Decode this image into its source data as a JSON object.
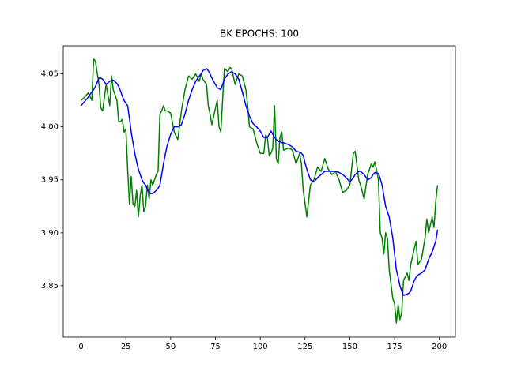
{
  "chart_data": {
    "type": "line",
    "title": "BK EPOCHS: 100",
    "x": [
      0,
      2,
      4,
      6,
      7,
      8,
      10,
      11,
      12,
      14,
      16,
      17,
      18,
      20,
      21,
      22,
      23,
      24,
      25,
      26,
      27,
      28,
      29,
      30,
      31,
      32,
      33,
      34,
      35,
      36,
      37,
      38,
      39,
      40,
      42,
      43,
      44,
      45,
      46,
      47,
      48,
      50,
      52,
      54,
      56,
      58,
      60,
      62,
      64,
      66,
      67,
      68,
      70,
      71,
      72,
      73,
      74,
      76,
      77,
      78,
      80,
      82,
      83,
      84,
      86,
      88,
      90,
      92,
      93,
      94,
      96,
      98,
      100,
      102,
      103,
      104,
      105,
      106,
      107,
      108,
      109,
      110,
      111,
      112,
      113,
      116,
      118,
      120,
      122,
      123,
      124,
      125,
      126,
      127,
      128,
      130,
      132,
      134,
      136,
      138,
      140,
      142,
      144,
      146,
      148,
      150,
      152,
      153,
      155,
      156,
      158,
      160,
      162,
      163,
      164,
      166,
      167,
      168,
      169,
      170,
      171,
      172,
      174,
      175,
      176,
      177,
      178,
      179,
      180,
      182,
      183,
      184,
      186,
      187,
      188,
      190,
      192,
      193,
      194,
      196,
      197,
      198,
      199
    ],
    "series": [
      {
        "color": "#008000",
        "values": [
          4.025,
          4.028,
          4.032,
          4.025,
          4.064,
          4.062,
          4.04,
          4.018,
          4.015,
          4.04,
          4.02,
          4.048,
          4.035,
          4.025,
          4.005,
          4.005,
          4.007,
          3.995,
          3.998,
          3.96,
          3.927,
          3.953,
          3.927,
          3.925,
          3.94,
          3.915,
          3.935,
          3.945,
          3.92,
          3.925,
          3.945,
          3.932,
          3.95,
          3.945,
          3.955,
          3.958,
          4.012,
          4.015,
          4.02,
          4.015,
          4.015,
          4.013,
          3.995,
          3.988,
          4.015,
          4.035,
          4.048,
          4.045,
          4.05,
          4.043,
          4.05,
          4.045,
          4.04,
          4.02,
          4.012,
          4.002,
          4.01,
          4.025,
          4.0,
          3.995,
          4.055,
          4.052,
          4.056,
          4.055,
          4.04,
          4.05,
          4.048,
          4.035,
          4.02,
          4.0,
          3.998,
          3.985,
          3.975,
          3.975,
          3.992,
          3.99,
          3.973,
          3.975,
          3.98,
          4.02,
          3.97,
          3.965,
          3.99,
          3.995,
          3.978,
          3.98,
          3.978,
          3.965,
          3.975,
          3.965,
          3.94,
          3.928,
          3.915,
          3.93,
          3.945,
          3.95,
          3.962,
          3.958,
          3.97,
          3.96,
          3.955,
          3.958,
          3.95,
          3.938,
          3.94,
          3.945,
          3.975,
          3.977,
          3.95,
          3.945,
          3.932,
          3.955,
          3.965,
          3.962,
          3.967,
          3.95,
          3.9,
          3.895,
          3.88,
          3.9,
          3.895,
          3.865,
          3.838,
          3.833,
          3.815,
          3.832,
          3.818,
          3.825,
          3.855,
          3.862,
          3.855,
          3.87,
          3.885,
          3.892,
          3.87,
          3.875,
          3.895,
          3.913,
          3.9,
          3.915,
          3.905,
          3.93,
          3.945
        ]
      },
      {
        "color": "#0000ff",
        "values": [
          4.02,
          4.024,
          4.028,
          4.033,
          4.035,
          4.038,
          4.046,
          4.046,
          4.045,
          4.04,
          4.043,
          4.044,
          4.044,
          4.041,
          4.038,
          4.034,
          4.029,
          4.025,
          4.022,
          4.02,
          4.008,
          3.995,
          3.985,
          3.975,
          3.967,
          3.96,
          3.955,
          3.95,
          3.947,
          3.945,
          3.941,
          3.938,
          3.937,
          3.937,
          3.94,
          3.942,
          3.945,
          3.955,
          3.965,
          3.974,
          3.982,
          3.993,
          4.0,
          4.0,
          4.002,
          4.012,
          4.025,
          4.035,
          4.043,
          4.048,
          4.05,
          4.053,
          4.055,
          4.053,
          4.05,
          4.046,
          4.043,
          4.037,
          4.036,
          4.035,
          4.045,
          4.05,
          4.051,
          4.052,
          4.05,
          4.045,
          4.033,
          4.02,
          4.015,
          4.01,
          4.003,
          4.0,
          3.996,
          3.99,
          3.99,
          3.99,
          3.993,
          3.996,
          3.993,
          3.99,
          3.988,
          3.986,
          3.986,
          3.985,
          3.985,
          3.983,
          3.981,
          3.977,
          3.976,
          3.975,
          3.973,
          3.966,
          3.96,
          3.955,
          3.95,
          3.948,
          3.952,
          3.955,
          3.958,
          3.958,
          3.958,
          3.958,
          3.957,
          3.955,
          3.952,
          3.948,
          3.952,
          3.955,
          3.958,
          3.958,
          3.955,
          3.95,
          3.952,
          3.955,
          3.957,
          3.956,
          3.951,
          3.945,
          3.935,
          3.925,
          3.92,
          3.915,
          3.895,
          3.88,
          3.865,
          3.858,
          3.85,
          3.845,
          3.841,
          3.842,
          3.843,
          3.845,
          3.855,
          3.858,
          3.86,
          3.862,
          3.865,
          3.87,
          3.875,
          3.882,
          3.887,
          3.892,
          3.903
        ]
      }
    ],
    "xlim": [
      -9.95,
      208.95
    ],
    "xticks": [
      0,
      25,
      50,
      75,
      100,
      125,
      150,
      175,
      200
    ],
    "ylim": [
      3.8015,
      4.0765
    ],
    "yticks": [
      3.85,
      {
        "value": 3.9,
        "label": "3.90"
      },
      3.95,
      {
        "value": 4.0,
        "label": "4.00"
      },
      4.05
    ]
  }
}
